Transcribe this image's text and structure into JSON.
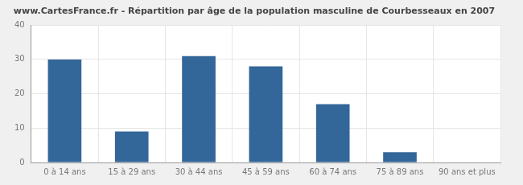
{
  "chart_data": {
    "type": "bar",
    "title": "www.CartesFrance.fr - Répartition par âge de la population masculine de Courbesseaux en 2007",
    "categories": [
      "0 à 14 ans",
      "15 à 29 ans",
      "30 à 44 ans",
      "45 à 59 ans",
      "60 à 74 ans",
      "75 à 89 ans",
      "90 ans et plus"
    ],
    "values": [
      30,
      9,
      31,
      28,
      17,
      3,
      0
    ],
    "color": "#336699",
    "ylim": [
      0,
      40
    ],
    "yticks": [
      0,
      10,
      20,
      30,
      40
    ],
    "grid": true
  }
}
